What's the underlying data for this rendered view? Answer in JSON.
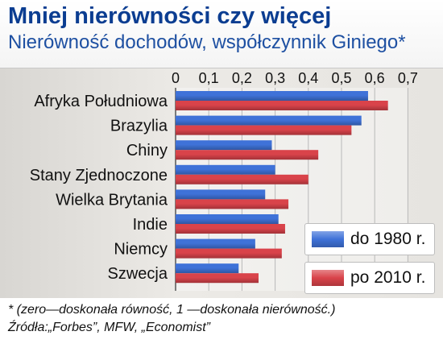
{
  "header": {
    "title": "Mniej nierówności czy więcej",
    "subtitle": "Nierówność dochodów, współczynnik Giniego*"
  },
  "footer": {
    "note": "* (zero—doskonała równość, 1 —doskonała nierówność.)",
    "sources": "Źródła:„Forbes”, MFW, „Economist”"
  },
  "colors": {
    "series1": "#3f72d8",
    "series2": "#d9434a",
    "title": "#0b3d91",
    "subtitle": "#1e50a2"
  },
  "chart_data": {
    "type": "bar",
    "orientation": "horizontal",
    "title": "Nierówność dochodów, współczynnik Giniego*",
    "xlim": [
      0,
      0.7
    ],
    "ticks": [
      "0",
      "0,1",
      "0,2",
      "0,3",
      "0,4",
      "0,5",
      "0,6",
      "0,7"
    ],
    "grid": true,
    "legend": "bottom-right",
    "categories": [
      "Afryka Południowa",
      "Brazylia",
      "Chiny",
      "Stany Zjednoczone",
      "Wielka Brytania",
      "Indie",
      "Niemcy",
      "Szwecja"
    ],
    "series": [
      {
        "name": "do 1980 r.",
        "values": [
          0.58,
          0.56,
          0.29,
          0.3,
          0.27,
          0.31,
          0.24,
          0.19
        ]
      },
      {
        "name": "po 2010 r.",
        "values": [
          0.64,
          0.53,
          0.43,
          0.4,
          0.34,
          0.33,
          0.32,
          0.25
        ]
      }
    ]
  }
}
